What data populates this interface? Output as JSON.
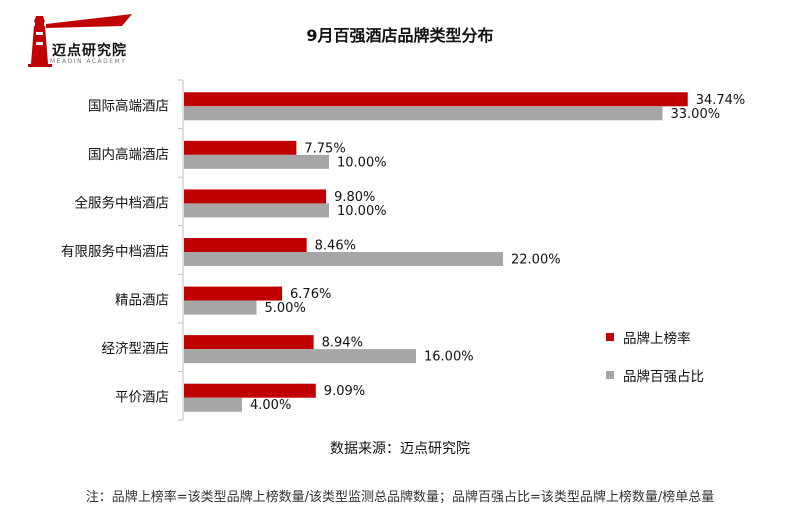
{
  "logo": {
    "name": "迈点研究院",
    "subtext": "MEADIN ACADEMY"
  },
  "chart_data": {
    "type": "bar",
    "orientation": "horizontal",
    "title": "9月百强酒店品牌类型分布",
    "categories": [
      "国际高端酒店",
      "国内高端酒店",
      "全服务中档酒店",
      "有限服务中档酒店",
      "精品酒店",
      "经济型酒店",
      "平价酒店"
    ],
    "series": [
      {
        "name": "品牌上榜率",
        "color": "#c00000",
        "values": [
          34.74,
          7.75,
          9.8,
          8.46,
          6.76,
          8.94,
          9.09
        ],
        "labels": [
          "34.74%",
          "7.75%",
          "9.80%",
          "8.46%",
          "6.76%",
          "8.94%",
          "9.09%"
        ]
      },
      {
        "name": "品牌百强占比",
        "color": "#a6a6a6",
        "values": [
          33.0,
          10.0,
          10.0,
          22.0,
          5.0,
          16.0,
          4.0
        ],
        "labels": [
          "33.00%",
          "10.00%",
          "10.00%",
          "22.00%",
          "5.00%",
          "16.00%",
          "4.00%"
        ]
      }
    ],
    "xlim": [
      0,
      35
    ],
    "grid": false,
    "legend_position": "right"
  },
  "source": "数据来源：迈点研究院",
  "note": "注：品牌上榜率=该类型品牌上榜数量/该类型监测总品牌数量；品牌百强占比=该类型品牌上榜数量/榜单总量"
}
